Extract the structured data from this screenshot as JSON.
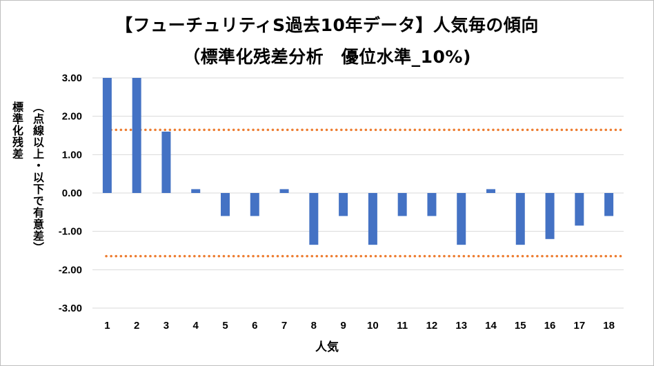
{
  "colors": {
    "bar": "#4472C4",
    "threshold": "#ED7D31",
    "grid": "#d9d9d9"
  },
  "chart_data": {
    "type": "bar",
    "title_line1": "【フューチュリティS過去10年データ】人気毎の傾向",
    "title_line2": "（標準化残差分析　優位水準_10%)",
    "xlabel": "人気",
    "ylabel_main": "標準化残差",
    "ylabel_sub": "（点線以上・以下で有意差）",
    "categories": [
      "1",
      "2",
      "3",
      "4",
      "5",
      "6",
      "7",
      "8",
      "9",
      "10",
      "11",
      "12",
      "13",
      "14",
      "15",
      "16",
      "17",
      "18"
    ],
    "values": [
      3.0,
      3.0,
      1.6,
      0.1,
      -0.6,
      -0.6,
      0.1,
      -1.35,
      -0.6,
      -1.35,
      -0.6,
      -0.6,
      -1.35,
      0.1,
      -1.35,
      -1.2,
      -0.85,
      -0.6
    ],
    "ylim": [
      -3,
      3
    ],
    "yticks": [
      "3.00",
      "2.00",
      "1.00",
      "0.00",
      "-1.00",
      "-2.00",
      "-3.00"
    ],
    "threshold": 1.645,
    "grid": true,
    "legend": "none"
  }
}
